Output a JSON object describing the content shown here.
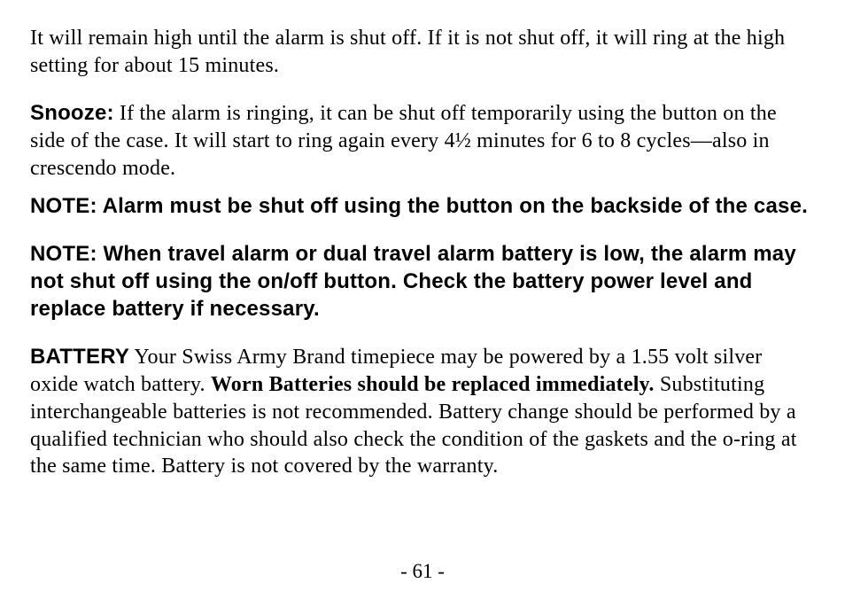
{
  "document": {
    "page_number": "- 61 -",
    "font_family_serif": "Georgia, 'Times New Roman', serif",
    "font_family_sans": "Arial, Helvetica, sans-serif",
    "font_size_body": 24,
    "font_size_page_number": 23,
    "line_height": 1.28,
    "text_color": "#000000",
    "background_color": "#ffffff",
    "paragraphs": {
      "p1": "It will remain high until the alarm is shut off. If it is not shut off, it will ring at the high setting for about 15 minutes.",
      "p2_bold_label": "Snooze:",
      "p2_body": " If the alarm is ringing, it can be shut off temporarily using the button on the side of the case. It will start to ring again every 4½ minutes for 6 to 8 cycles—also in crescendo mode.",
      "p3_note": "NOTE: Alarm must be shut off using the button on the backside of the case.",
      "p4_note": "NOTE: When travel alarm or dual travel alarm battery is low, the alarm may not shut off using the on/off button. Check the battery power level and replace battery if necessary.",
      "p5_heading": "BATTERY",
      "p5_body1": " Your Swiss Army Brand timepiece may be powered by a 1.55 volt silver oxide watch battery. ",
      "p5_bold_inline": "Worn Batteries should be replaced immediately.",
      "p5_body2": " Substituting interchangeable batteries is not recommended. Battery change should be performed by a qualified technician who should also check the condition of the gaskets and the o-ring at the same time. Battery is not covered by the warranty."
    }
  }
}
